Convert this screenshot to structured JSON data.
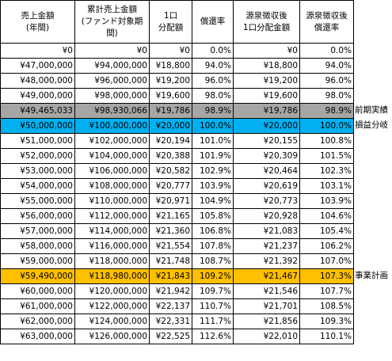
{
  "headers": [
    "売上金額\n(年間)",
    "累計売上金額\n(ファンド対象期間)",
    "1口\n分配額",
    "償還率",
    "源泉徴収後\n1口分配金額",
    "源泉徴収後\n償還率"
  ],
  "rows": [
    {
      "cells": [
        "¥0",
        "¥0",
        "¥0",
        "0.0%",
        "¥0",
        "0.0%"
      ],
      "highlight": "",
      "note": ""
    },
    {
      "cells": [
        "¥47,000,000",
        "¥94,000,000",
        "¥18,800",
        "94.0%",
        "¥18,800",
        "94.0%"
      ],
      "highlight": "",
      "note": ""
    },
    {
      "cells": [
        "¥48,000,000",
        "¥96,000,000",
        "¥19,200",
        "96.0%",
        "¥19,200",
        "96.0%"
      ],
      "highlight": "",
      "note": ""
    },
    {
      "cells": [
        "¥49,000,000",
        "¥98,000,000",
        "¥19,600",
        "98.0%",
        "¥19,600",
        "98.0%"
      ],
      "highlight": "",
      "note": ""
    },
    {
      "cells": [
        "¥49,465,033",
        "¥98,930,066",
        "¥19,786",
        "98.9%",
        "¥19,786",
        "98.9%"
      ],
      "highlight": "gray",
      "note": "前期実績"
    },
    {
      "cells": [
        "¥50,000,000",
        "¥100,000,000",
        "¥20,000",
        "100.0%",
        "¥20,000",
        "100.0%"
      ],
      "highlight": "cyan",
      "note": "損益分岐"
    },
    {
      "cells": [
        "¥51,000,000",
        "¥102,000,000",
        "¥20,194",
        "101.0%",
        "¥20,155",
        "100.8%"
      ],
      "highlight": "",
      "note": ""
    },
    {
      "cells": [
        "¥52,000,000",
        "¥104,000,000",
        "¥20,388",
        "101.9%",
        "¥20,309",
        "101.5%"
      ],
      "highlight": "",
      "note": ""
    },
    {
      "cells": [
        "¥53,000,000",
        "¥106,000,000",
        "¥20,582",
        "102.9%",
        "¥20,464",
        "102.3%"
      ],
      "highlight": "",
      "note": ""
    },
    {
      "cells": [
        "¥54,000,000",
        "¥108,000,000",
        "¥20,777",
        "103.9%",
        "¥20,619",
        "103.1%"
      ],
      "highlight": "",
      "note": ""
    },
    {
      "cells": [
        "¥55,000,000",
        "¥110,000,000",
        "¥20,971",
        "104.9%",
        "¥20,773",
        "103.9%"
      ],
      "highlight": "",
      "note": ""
    },
    {
      "cells": [
        "¥56,000,000",
        "¥112,000,000",
        "¥21,165",
        "105.8%",
        "¥20,928",
        "104.6%"
      ],
      "highlight": "",
      "note": ""
    },
    {
      "cells": [
        "¥57,000,000",
        "¥114,000,000",
        "¥21,360",
        "106.8%",
        "¥21,083",
        "105.4%"
      ],
      "highlight": "",
      "note": ""
    },
    {
      "cells": [
        "¥58,000,000",
        "¥116,000,000",
        "¥21,554",
        "107.8%",
        "¥21,237",
        "106.2%"
      ],
      "highlight": "",
      "note": ""
    },
    {
      "cells": [
        "¥59,000,000",
        "¥118,000,000",
        "¥21,748",
        "108.7%",
        "¥21,392",
        "107.0%"
      ],
      "highlight": "",
      "note": ""
    },
    {
      "cells": [
        "¥59,490,000",
        "¥118,980,000",
        "¥21,843",
        "109.2%",
        "¥21,467",
        "107.3%"
      ],
      "highlight": "gold",
      "note": "事業計画"
    },
    {
      "cells": [
        "¥60,000,000",
        "¥120,000,000",
        "¥21,942",
        "109.7%",
        "¥21,546",
        "107.7%"
      ],
      "highlight": "",
      "note": ""
    },
    {
      "cells": [
        "¥61,000,000",
        "¥122,000,000",
        "¥22,137",
        "110.7%",
        "¥21,701",
        "108.5%"
      ],
      "highlight": "",
      "note": ""
    },
    {
      "cells": [
        "¥62,000,000",
        "¥124,000,000",
        "¥22,331",
        "111.7%",
        "¥21,856",
        "109.3%"
      ],
      "highlight": "",
      "note": ""
    },
    {
      "cells": [
        "¥63,000,000",
        "¥126,000,000",
        "¥22,525",
        "112.6%",
        "¥22,010",
        "110.1%"
      ],
      "highlight": "",
      "note": ""
    }
  ],
  "colors": {
    "gray": "#a6a6a6",
    "cyan": "#00b0f0",
    "gold": "#ffc000"
  }
}
